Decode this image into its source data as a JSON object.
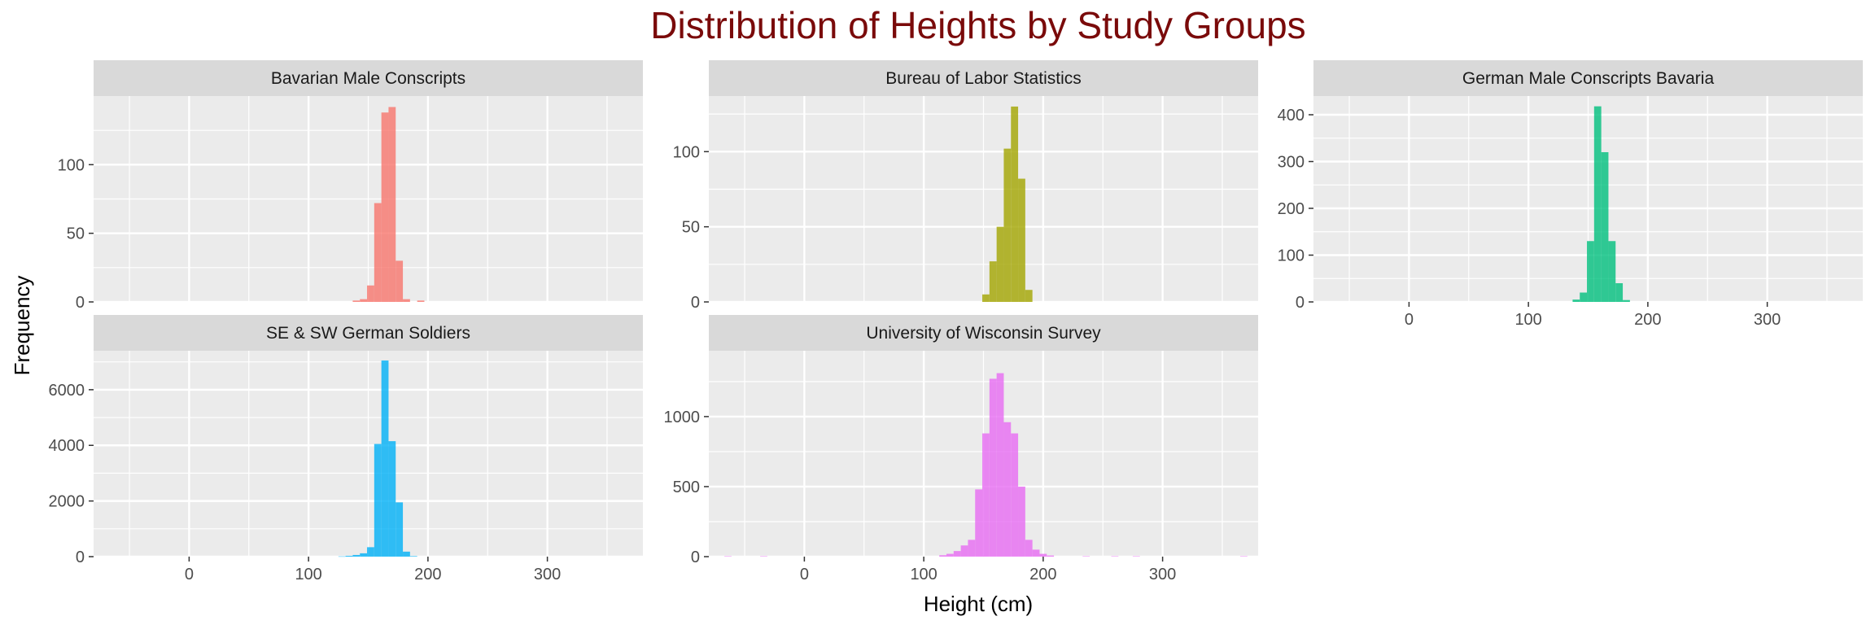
{
  "chart_data": {
    "type": "bar",
    "title": "Distribution of Heights by Study Groups",
    "xlabel": "Height (cm)",
    "ylabel": "Frequency",
    "xlim": [
      -80,
      380
    ],
    "x_ticks": [
      0,
      100,
      200,
      300
    ],
    "bin_width": 6,
    "grid": true,
    "legend": "none",
    "panels": [
      {
        "name": "Bavarian Male Conscripts",
        "color": "#F8766D",
        "ylim": [
          0,
          150
        ],
        "y_ticks": [
          0,
          50,
          100
        ],
        "bins": [
          {
            "x": 140,
            "value": 1
          },
          {
            "x": 146,
            "value": 2
          },
          {
            "x": 152,
            "value": 12
          },
          {
            "x": 158,
            "value": 72
          },
          {
            "x": 164,
            "value": 138
          },
          {
            "x": 170,
            "value": 142
          },
          {
            "x": 176,
            "value": 30
          },
          {
            "x": 182,
            "value": 2
          },
          {
            "x": 194,
            "value": 1
          }
        ]
      },
      {
        "name": "Bureau of Labor Statistics",
        "color": "#A3A500",
        "ylim": [
          0,
          137
        ],
        "y_ticks": [
          0,
          50,
          100
        ],
        "bins": [
          {
            "x": 152,
            "value": 5
          },
          {
            "x": 158,
            "value": 27
          },
          {
            "x": 164,
            "value": 50
          },
          {
            "x": 170,
            "value": 102
          },
          {
            "x": 176,
            "value": 130
          },
          {
            "x": 182,
            "value": 82
          },
          {
            "x": 188,
            "value": 8
          }
        ]
      },
      {
        "name": "German Male Conscripts Bavaria",
        "color": "#00BF7D",
        "ylim": [
          0,
          440
        ],
        "y_ticks": [
          0,
          100,
          200,
          300,
          400
        ],
        "bins": [
          {
            "x": 140,
            "value": 5
          },
          {
            "x": 146,
            "value": 20
          },
          {
            "x": 152,
            "value": 130
          },
          {
            "x": 158,
            "value": 418
          },
          {
            "x": 164,
            "value": 320
          },
          {
            "x": 170,
            "value": 130
          },
          {
            "x": 176,
            "value": 40
          },
          {
            "x": 182,
            "value": 4
          }
        ]
      },
      {
        "name": "SE & SW German Soldiers",
        "color": "#00B0F6",
        "ylim": [
          0,
          7400
        ],
        "y_ticks": [
          0,
          2000,
          4000,
          6000
        ],
        "bins": [
          {
            "x": 128,
            "value": 10
          },
          {
            "x": 134,
            "value": 30
          },
          {
            "x": 140,
            "value": 60
          },
          {
            "x": 146,
            "value": 120
          },
          {
            "x": 152,
            "value": 340
          },
          {
            "x": 158,
            "value": 4050
          },
          {
            "x": 164,
            "value": 7050
          },
          {
            "x": 170,
            "value": 4150
          },
          {
            "x": 176,
            "value": 1950
          },
          {
            "x": 182,
            "value": 180
          },
          {
            "x": 188,
            "value": 20
          }
        ]
      },
      {
        "name": "University of Wisconsin Survey",
        "color": "#E76BF3",
        "ylim": [
          0,
          1470
        ],
        "y_ticks": [
          0,
          500,
          1000
        ],
        "bins": [
          {
            "x": -64,
            "value": 3
          },
          {
            "x": -34,
            "value": 3
          },
          {
            "x": 116,
            "value": 10
          },
          {
            "x": 122,
            "value": 20
          },
          {
            "x": 128,
            "value": 40
          },
          {
            "x": 134,
            "value": 80
          },
          {
            "x": 140,
            "value": 120
          },
          {
            "x": 146,
            "value": 480
          },
          {
            "x": 152,
            "value": 880
          },
          {
            "x": 158,
            "value": 1270
          },
          {
            "x": 164,
            "value": 1310
          },
          {
            "x": 170,
            "value": 960
          },
          {
            "x": 176,
            "value": 880
          },
          {
            "x": 182,
            "value": 500
          },
          {
            "x": 188,
            "value": 120
          },
          {
            "x": 194,
            "value": 50
          },
          {
            "x": 200,
            "value": 20
          },
          {
            "x": 206,
            "value": 8
          },
          {
            "x": 236,
            "value": 3
          },
          {
            "x": 260,
            "value": 3
          },
          {
            "x": 278,
            "value": 3
          },
          {
            "x": 368,
            "value": 3
          }
        ]
      }
    ]
  }
}
